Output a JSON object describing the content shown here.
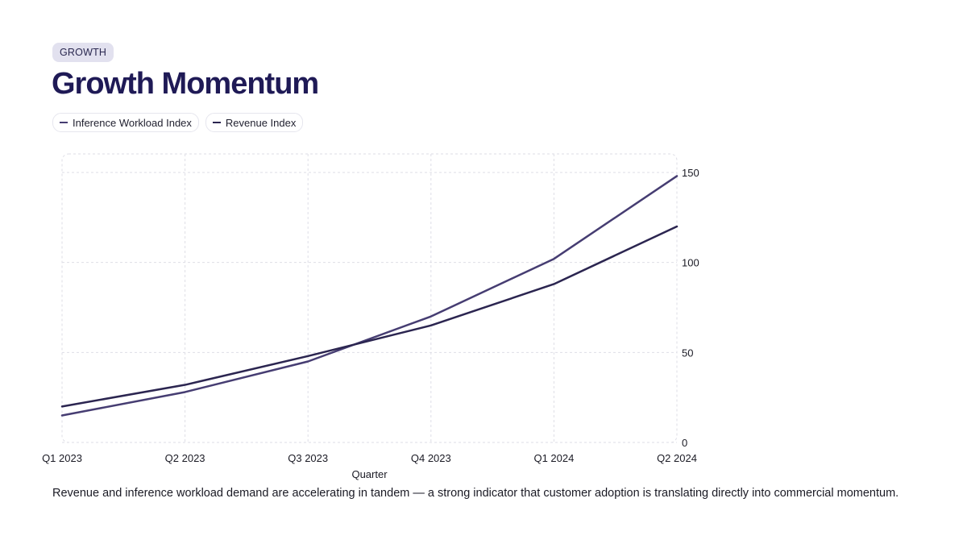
{
  "tag": "GROWTH",
  "title": "Growth Momentum",
  "caption": "Revenue and inference workload demand are accelerating in tandem — a strong indicator that customer adoption is translating directly into commercial momentum.",
  "colors": {
    "inference": "#463d72",
    "revenue": "#2b2550",
    "grid": "#dedee6",
    "title": "#1f1a56",
    "tag_bg": "#e2e1ef"
  },
  "chart_data": {
    "type": "line",
    "categories": [
      "Q1 2023",
      "Q2 2023",
      "Q3 2023",
      "Q4 2023",
      "Q1 2024",
      "Q2 2024"
    ],
    "series": [
      {
        "name": "Inference Workload Index",
        "values": [
          15,
          28,
          45,
          70,
          102,
          148
        ]
      },
      {
        "name": "Revenue Index",
        "values": [
          20,
          32,
          48,
          65,
          88,
          120
        ]
      }
    ],
    "xlabel": "Quarter",
    "ylabel": "",
    "ylim": [
      0,
      150
    ],
    "yticks": [
      0,
      50,
      100,
      150
    ],
    "y_axis_side": "right",
    "grid": true,
    "legend_position": "top-left"
  }
}
